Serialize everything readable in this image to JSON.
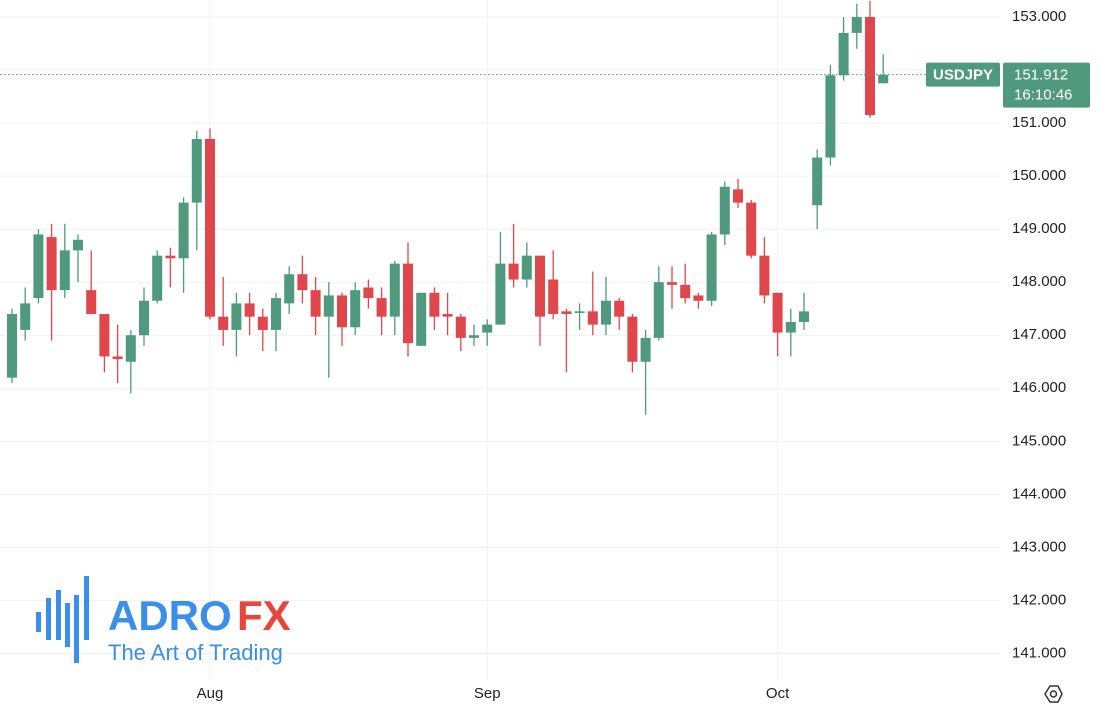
{
  "chart_data": {
    "type": "candlestick",
    "categories": [
      null,
      null,
      null,
      null,
      null,
      null,
      null,
      null,
      null,
      null,
      null,
      null,
      null,
      null,
      null,
      "Aug",
      null,
      null,
      null,
      null,
      null,
      null,
      null,
      null,
      null,
      null,
      null,
      null,
      null,
      null,
      null,
      null,
      null,
      null,
      null,
      null,
      "Sep",
      null,
      null,
      null,
      null,
      null,
      null,
      null,
      null,
      null,
      null,
      null,
      null,
      null,
      null,
      null,
      null,
      null,
      null,
      null,
      null,
      null,
      "Oct",
      null,
      null,
      null,
      null,
      null,
      null,
      null,
      null
    ],
    "open": [
      146.2,
      147.1,
      147.7,
      148.85,
      147.85,
      148.6,
      147.85,
      147.4,
      146.6,
      146.5,
      147.0,
      147.65,
      148.5,
      148.45,
      149.5,
      150.7,
      147.35,
      147.1,
      147.6,
      147.35,
      147.1,
      147.6,
      148.15,
      147.85,
      147.35,
      147.75,
      147.15,
      147.9,
      147.7,
      147.35,
      148.35,
      146.8,
      147.8,
      147.4,
      147.35,
      146.95,
      147.05,
      147.2,
      148.35,
      148.05,
      148.5,
      148.05,
      147.45,
      147.42,
      147.45,
      147.2,
      147.65,
      147.35,
      146.5,
      146.95,
      148.0,
      147.95,
      147.75,
      147.65,
      148.9,
      149.75,
      149.5,
      148.5,
      147.8,
      147.05,
      147.25,
      149.45,
      150.35,
      151.9,
      152.7,
      153.0,
      151.75
    ],
    "high": [
      147.5,
      147.9,
      149.0,
      149.1,
      149.1,
      148.9,
      148.6,
      147.4,
      147.2,
      147.1,
      147.9,
      148.6,
      148.65,
      149.6,
      150.85,
      150.9,
      148.1,
      147.8,
      147.8,
      147.5,
      147.8,
      148.3,
      148.5,
      148.1,
      148.0,
      147.8,
      148.0,
      148.05,
      147.9,
      148.4,
      148.75,
      147.8,
      147.9,
      147.8,
      147.4,
      147.2,
      147.3,
      148.95,
      149.1,
      148.75,
      148.5,
      148.6,
      147.5,
      147.6,
      148.2,
      148.1,
      147.7,
      147.4,
      147.1,
      148.3,
      148.3,
      148.35,
      147.8,
      148.95,
      149.9,
      149.95,
      149.55,
      148.85,
      147.8,
      147.5,
      147.8,
      150.5,
      152.1,
      153.0,
      153.25,
      153.3,
      152.3
    ],
    "low": [
      146.1,
      146.9,
      147.6,
      146.9,
      147.7,
      148.0,
      147.4,
      146.3,
      146.1,
      145.9,
      146.8,
      147.6,
      147.9,
      147.8,
      148.6,
      147.3,
      146.8,
      146.6,
      147.0,
      146.7,
      146.7,
      147.4,
      147.6,
      147.0,
      146.2,
      146.8,
      147.0,
      147.5,
      147.0,
      147.0,
      146.6,
      146.8,
      147.1,
      147.0,
      146.7,
      146.8,
      146.8,
      147.2,
      147.9,
      147.9,
      146.8,
      147.3,
      146.3,
      147.1,
      147.0,
      147.0,
      147.1,
      146.3,
      145.5,
      146.9,
      147.5,
      147.6,
      147.5,
      147.55,
      148.7,
      149.4,
      148.45,
      147.6,
      146.6,
      146.6,
      147.1,
      149.0,
      150.2,
      151.8,
      152.4,
      151.1,
      151.75
    ],
    "close": [
      147.4,
      147.6,
      148.9,
      147.85,
      148.6,
      148.8,
      147.4,
      146.6,
      146.55,
      147.0,
      147.65,
      148.5,
      148.45,
      149.5,
      150.7,
      147.35,
      147.1,
      147.6,
      147.35,
      147.1,
      147.7,
      148.15,
      147.85,
      147.35,
      147.75,
      147.15,
      147.85,
      147.7,
      147.35,
      148.35,
      146.85,
      147.8,
      147.35,
      147.35,
      146.95,
      147.0,
      147.2,
      148.35,
      148.05,
      148.5,
      147.35,
      147.4,
      147.4,
      147.45,
      147.2,
      147.65,
      147.35,
      146.5,
      146.95,
      148.0,
      147.95,
      147.7,
      147.65,
      148.9,
      149.8,
      149.5,
      148.5,
      147.75,
      147.05,
      147.25,
      147.45,
      150.35,
      151.9,
      152.7,
      153.0,
      151.15,
      151.91
    ],
    "up_color": "#4f9a7f",
    "down_color": "#e0474c",
    "ylim": [
      140.5,
      153.32
    ],
    "yticks": [
      {
        "value": 141,
        "label": "141.000"
      },
      {
        "value": 142,
        "label": "142.000"
      },
      {
        "value": 143,
        "label": "143.000"
      },
      {
        "value": 144,
        "label": "144.000"
      },
      {
        "value": 145,
        "label": "145.000"
      },
      {
        "value": 146,
        "label": "146.000"
      },
      {
        "value": 147,
        "label": "147.000"
      },
      {
        "value": 148,
        "label": "148.000"
      },
      {
        "value": 149,
        "label": "149.000"
      },
      {
        "value": 150,
        "label": "150.000"
      },
      {
        "value": 151,
        "label": "151.000"
      },
      {
        "value": 152,
        "label": "152.000"
      },
      {
        "value": 153,
        "label": "153.000"
      }
    ],
    "grid": true,
    "last_price": {
      "symbol": "USDJPY",
      "value": 151.912,
      "countdown": "16:10:46"
    },
    "watermark": {
      "brand_a": "ADRO",
      "brand_b": "FX",
      "tagline": "The Art of Trading"
    }
  }
}
